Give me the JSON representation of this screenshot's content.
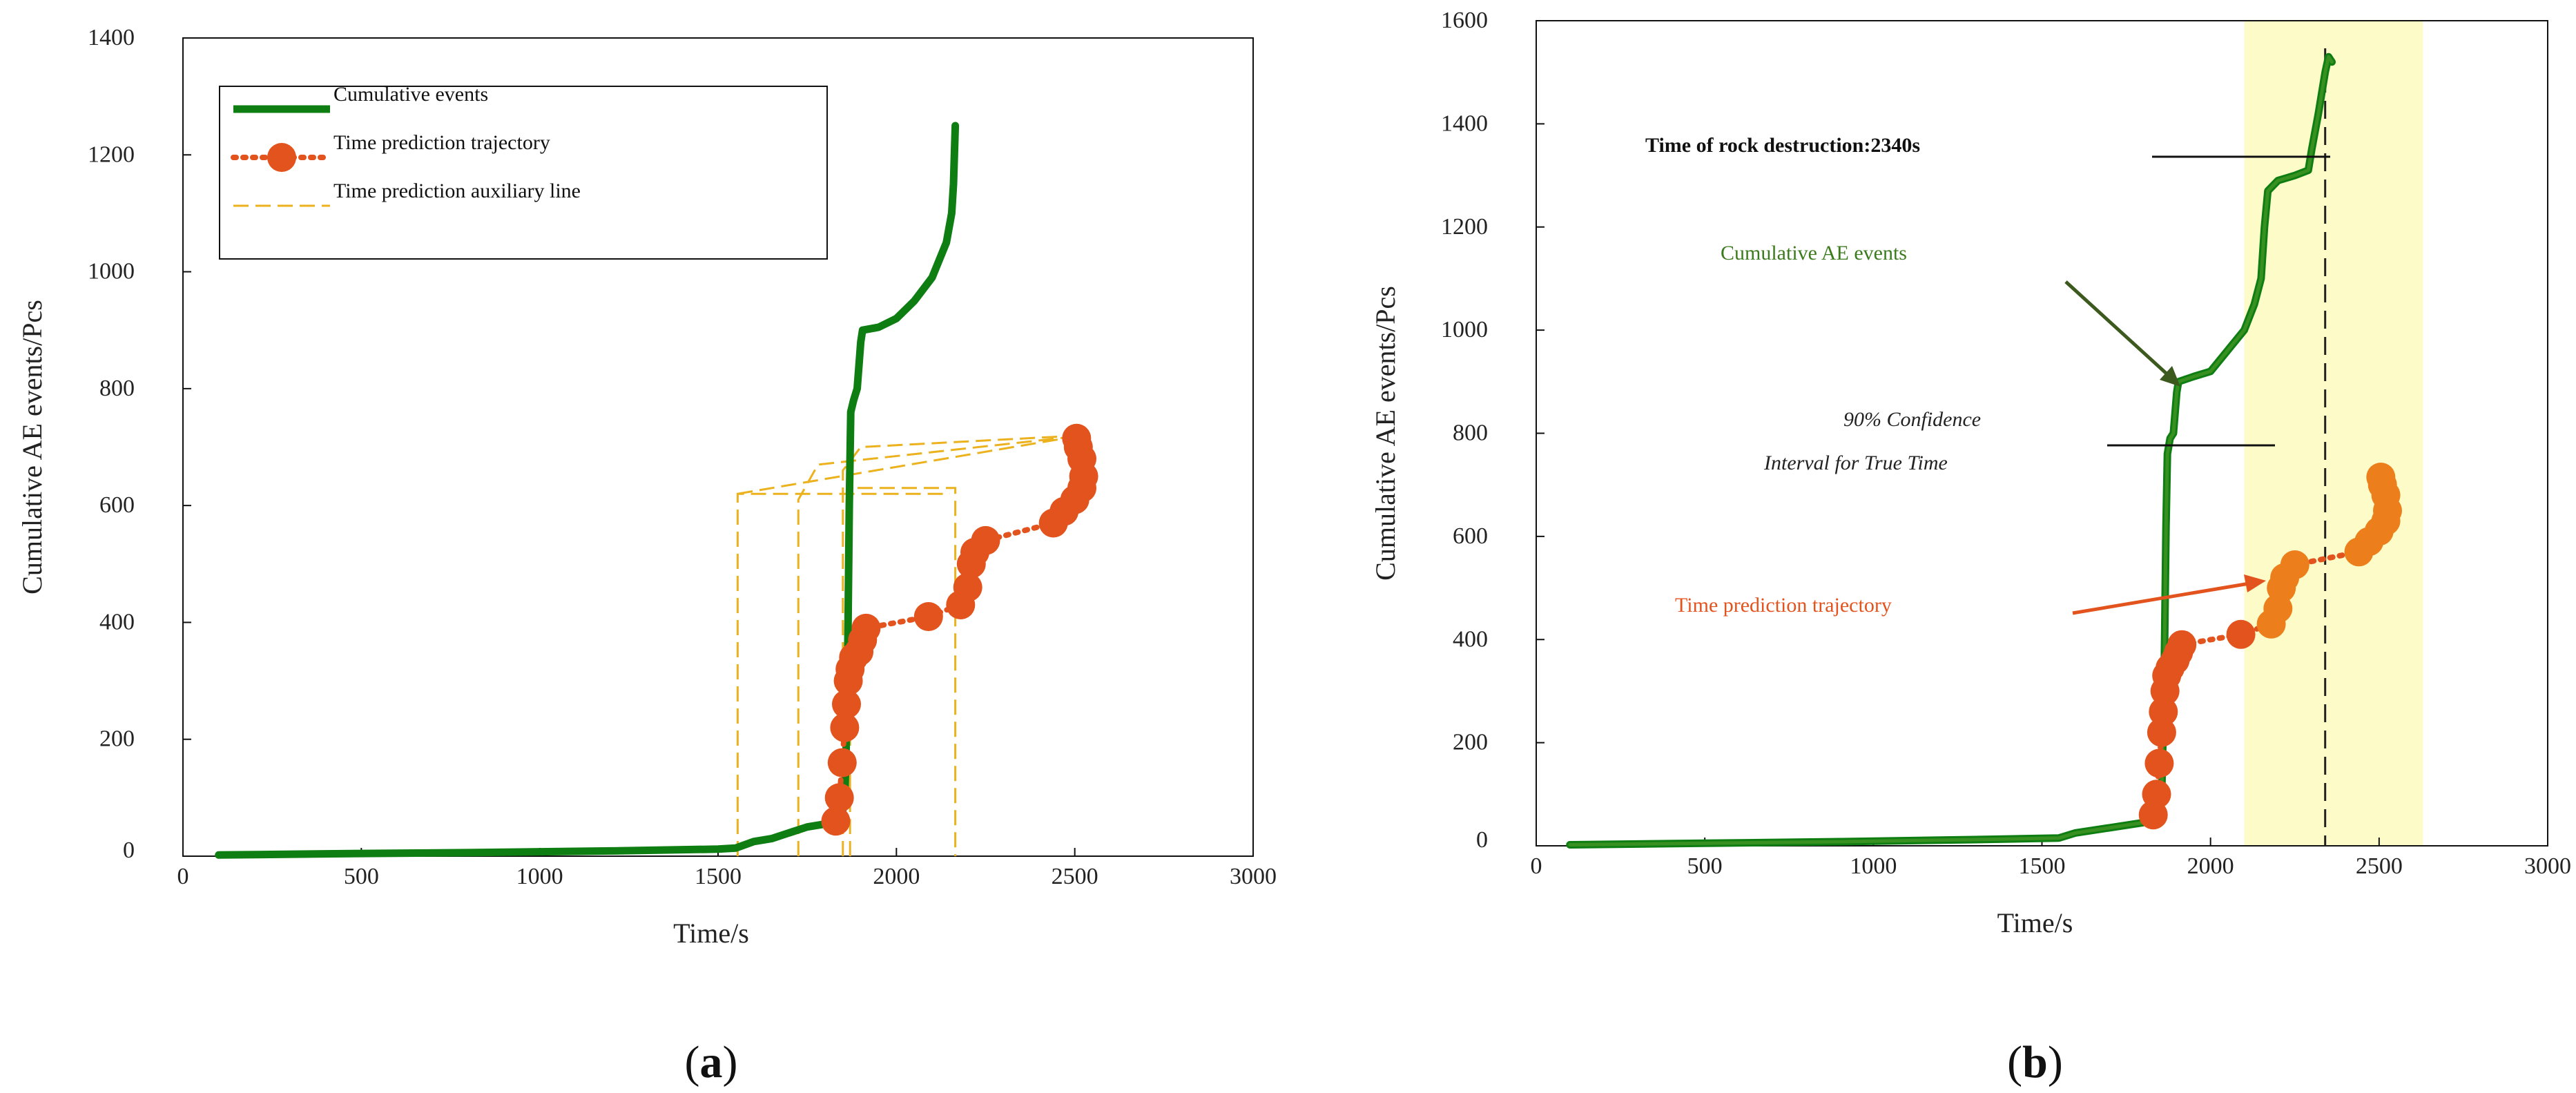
{
  "chart_data": [
    {
      "panel_label": "(a)",
      "panel_letter": "a",
      "type": "line",
      "xlabel": "Time/s",
      "ylabel": "Cumulative AE events/Pcs",
      "xlim": [
        0,
        3000
      ],
      "ylim": [
        0,
        1400
      ],
      "xticks": [
        0,
        500,
        1000,
        1500,
        2000,
        2500,
        3000
      ],
      "yticks": [
        0,
        200,
        400,
        600,
        800,
        1000,
        1200,
        1400
      ],
      "grid": false,
      "legend_position": "top-left",
      "legend": [
        {
          "label": "Cumulative events",
          "style": "solid",
          "color": "#0e7d12"
        },
        {
          "label": "Time prediction trajectory",
          "style": "dotted-marker",
          "color": "#e2531d"
        },
        {
          "label": "Time prediction auxiliary line",
          "style": "dashed",
          "color": "#ecb21e"
        }
      ],
      "series": [
        {
          "name": "Cumulative events",
          "color": "#0e7d12",
          "points": [
            [
              100,
              2
            ],
            [
              400,
              4
            ],
            [
              800,
              6
            ],
            [
              1200,
              9
            ],
            [
              1500,
              12
            ],
            [
              1550,
              14
            ],
            [
              1600,
              25
            ],
            [
              1650,
              30
            ],
            [
              1700,
              40
            ],
            [
              1750,
              50
            ],
            [
              1800,
              55
            ],
            [
              1840,
              60
            ],
            [
              1855,
              90
            ],
            [
              1862,
              250
            ],
            [
              1868,
              600
            ],
            [
              1872,
              760
            ],
            [
              1880,
              780
            ],
            [
              1890,
              800
            ],
            [
              1900,
              880
            ],
            [
              1905,
              900
            ],
            [
              1950,
              905
            ],
            [
              2000,
              920
            ],
            [
              2050,
              950
            ],
            [
              2100,
              990
            ],
            [
              2140,
              1050
            ],
            [
              2155,
              1100
            ],
            [
              2160,
              1150
            ],
            [
              2165,
              1250
            ]
          ]
        },
        {
          "name": "Time prediction trajectory",
          "color": "#e2531d",
          "points": [
            [
              1830,
              60
            ],
            [
              1840,
              100
            ],
            [
              1848,
              160
            ],
            [
              1855,
              220
            ],
            [
              1860,
              260
            ],
            [
              1865,
              300
            ],
            [
              1870,
              320
            ],
            [
              1880,
              340
            ],
            [
              1895,
              350
            ],
            [
              1905,
              370
            ],
            [
              1915,
              390
            ],
            [
              2090,
              410
            ],
            [
              2180,
              430
            ],
            [
              2200,
              460
            ],
            [
              2210,
              500
            ],
            [
              2220,
              520
            ],
            [
              2250,
              540
            ],
            [
              2440,
              570
            ],
            [
              2470,
              590
            ],
            [
              2500,
              610
            ],
            [
              2520,
              630
            ],
            [
              2525,
              650
            ],
            [
              2520,
              680
            ],
            [
              2510,
              700
            ],
            [
              2505,
              715
            ]
          ]
        }
      ],
      "auxiliary_lines": [
        [
          [
            1555,
            0
          ],
          [
            1555,
            620
          ],
          [
            2150,
            620
          ]
        ],
        [
          [
            1725,
            0
          ],
          [
            1725,
            610
          ],
          [
            1780,
            670
          ],
          [
            2530,
            720
          ]
        ],
        [
          [
            1850,
            0
          ],
          [
            1850,
            660
          ],
          [
            1900,
            700
          ],
          [
            2520,
            720
          ]
        ],
        [
          [
            1870,
            0
          ],
          [
            1870,
            630
          ],
          [
            2165,
            630
          ],
          [
            2165,
            0
          ]
        ],
        [
          [
            1555,
            620
          ],
          [
            2520,
            720
          ]
        ]
      ]
    },
    {
      "panel_label": "(b)",
      "panel_letter": "b",
      "type": "line",
      "xlabel": "Time/s",
      "ylabel": "Cumulative AE events/Pcs",
      "xlim": [
        0,
        3000
      ],
      "ylim": [
        0,
        1600
      ],
      "xticks": [
        0,
        500,
        1000,
        1500,
        2000,
        2500,
        3000
      ],
      "yticks": [
        0,
        200,
        400,
        600,
        800,
        1000,
        1200,
        1400,
        1600
      ],
      "grid": false,
      "highlight_band": {
        "x": [
          2100,
          2630
        ],
        "color": "#fdfbc8"
      },
      "destruction_time_line": {
        "x": 2340,
        "color": "#222222"
      },
      "annotations": [
        {
          "text": "Time of rock destruction:2340s",
          "bold": true,
          "color": "#111111"
        },
        {
          "text": "Cumulative AE events",
          "color": "#3c7a1e"
        },
        {
          "text": "90% Confidence",
          "italic": true,
          "color": "#222222"
        },
        {
          "text": "Interval for True Time",
          "italic": true,
          "color": "#222222"
        },
        {
          "text": "Time prediction trajectory",
          "color": "#e2531d"
        }
      ],
      "series": [
        {
          "name": "Cumulative AE events",
          "color": "#0e7d12",
          "points": [
            [
              100,
              2
            ],
            [
              500,
              5
            ],
            [
              900,
              8
            ],
            [
              1300,
              12
            ],
            [
              1550,
              15
            ],
            [
              1600,
              25
            ],
            [
              1700,
              35
            ],
            [
              1800,
              45
            ],
            [
              1840,
              55
            ],
            [
              1855,
              100
            ],
            [
              1862,
              300
            ],
            [
              1868,
              620
            ],
            [
              1872,
              760
            ],
            [
              1880,
              790
            ],
            [
              1890,
              800
            ],
            [
              1900,
              880
            ],
            [
              1905,
              900
            ],
            [
              1950,
              910
            ],
            [
              2000,
              920
            ],
            [
              2050,
              960
            ],
            [
              2100,
              1000
            ],
            [
              2130,
              1050
            ],
            [
              2150,
              1100
            ],
            [
              2160,
              1200
            ],
            [
              2170,
              1270
            ],
            [
              2200,
              1290
            ],
            [
              2250,
              1300
            ],
            [
              2290,
              1310
            ],
            [
              2300,
              1350
            ],
            [
              2320,
              1420
            ],
            [
              2340,
              1500
            ],
            [
              2350,
              1530
            ],
            [
              2360,
              1520
            ]
          ]
        },
        {
          "name": "Time prediction trajectory",
          "color": "#e2531d",
          "points": [
            [
              1830,
              60
            ],
            [
              1840,
              100
            ],
            [
              1848,
              160
            ],
            [
              1855,
              220
            ],
            [
              1860,
              260
            ],
            [
              1865,
              300
            ],
            [
              1870,
              330
            ],
            [
              1880,
              345
            ],
            [
              1895,
              360
            ],
            [
              1905,
              375
            ],
            [
              1915,
              390
            ],
            [
              2090,
              410
            ],
            [
              2180,
              430
            ],
            [
              2200,
              460
            ],
            [
              2210,
              500
            ],
            [
              2220,
              520
            ],
            [
              2250,
              545
            ],
            [
              2440,
              570
            ],
            [
              2470,
              590
            ],
            [
              2500,
              610
            ],
            [
              2520,
              630
            ],
            [
              2525,
              650
            ],
            [
              2520,
              680
            ],
            [
              2510,
              700
            ],
            [
              2505,
              715
            ]
          ]
        }
      ]
    }
  ]
}
